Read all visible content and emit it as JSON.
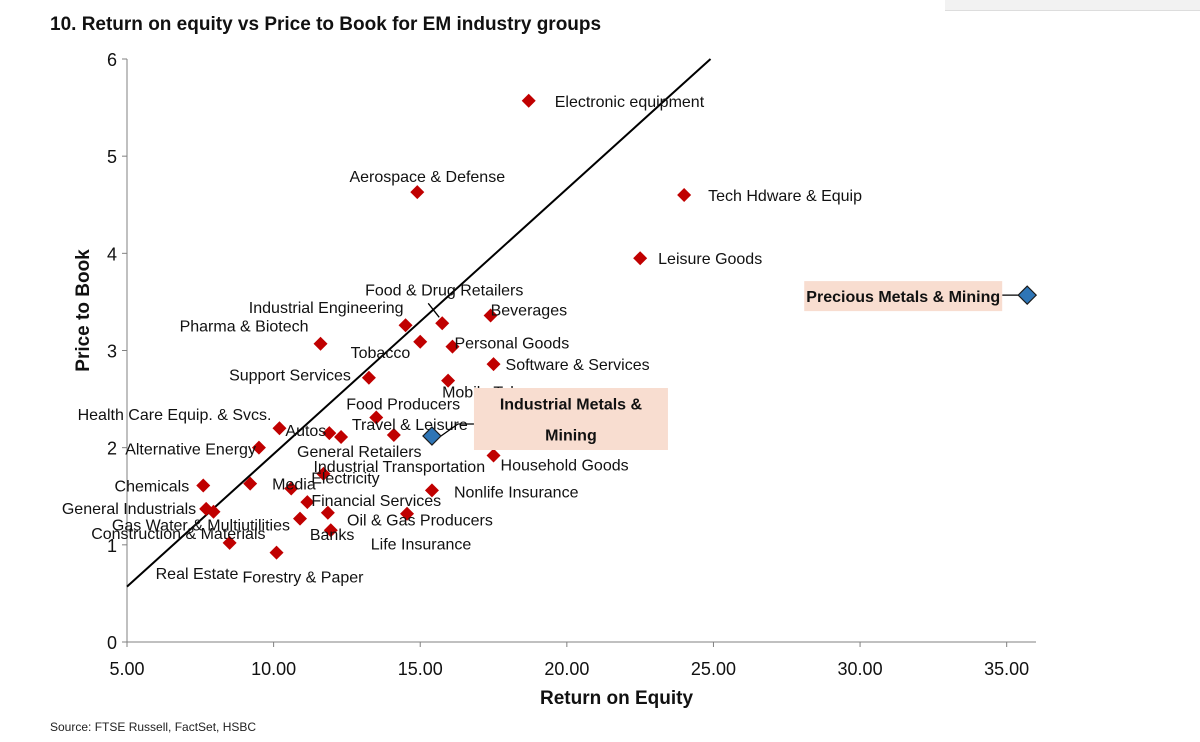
{
  "title": "10. Return on equity vs Price to Book for EM industry groups",
  "source": "Source: FTSE Russell, FactSet, HSBC",
  "chart_data": {
    "type": "scatter",
    "xlabel": "Return on Equity",
    "ylabel": "Price to Book",
    "xlim": [
      5,
      36
    ],
    "ylim": [
      0,
      6
    ],
    "xticks": [
      "5.00",
      "10.00",
      "15.00",
      "20.00",
      "25.00",
      "30.00",
      "35.00"
    ],
    "xtick_values": [
      5,
      10,
      15,
      20,
      25,
      30,
      35
    ],
    "yticks": [
      "0",
      "1",
      "2",
      "3",
      "4",
      "5",
      "6"
    ],
    "ytick_values": [
      0,
      1,
      2,
      3,
      4,
      5,
      6
    ],
    "grid": false,
    "trendline": {
      "x": [
        5,
        24.9
      ],
      "y": [
        0.57,
        6.0
      ]
    },
    "colors": {
      "point": "#c00000",
      "highlight": "#2e75b6",
      "highlight_box": "#f8ddd0",
      "line": "#000000"
    },
    "points": [
      {
        "label": "Electronic equipment",
        "x": 18.7,
        "y": 5.57
      },
      {
        "label": "Aerospace & Defense",
        "x": 14.9,
        "y": 4.63
      },
      {
        "label": "Tech Hdware & Equip",
        "x": 24.0,
        "y": 4.6
      },
      {
        "label": "Leisure Goods",
        "x": 22.5,
        "y": 3.95
      },
      {
        "label": "Food & Drug Retailers",
        "x": 15.75,
        "y": 3.28
      },
      {
        "label": "Industrial Engineering",
        "x": 14.5,
        "y": 3.26
      },
      {
        "label": "Beverages",
        "x": 17.4,
        "y": 3.36
      },
      {
        "label": "Pharma & Biotech",
        "x": 11.6,
        "y": 3.07
      },
      {
        "label": "Tobacco",
        "x": 15.0,
        "y": 3.09
      },
      {
        "label": "Personal Goods",
        "x": 16.1,
        "y": 3.04
      },
      {
        "label": "Software &  Services",
        "x": 17.5,
        "y": 2.86
      },
      {
        "label": "Support Services",
        "x": 13.25,
        "y": 2.72
      },
      {
        "label": "Mobile Telecoms",
        "x": 15.95,
        "y": 2.69
      },
      {
        "label": "Food Producers",
        "x": 13.5,
        "y": 2.31
      },
      {
        "label": "Health Care Equip. & Svcs.",
        "x": 10.2,
        "y": 2.2
      },
      {
        "label": "Autos",
        "x": 11.9,
        "y": 2.15
      },
      {
        "label": "Travel & Leisure",
        "x": 14.1,
        "y": 2.13
      },
      {
        "label": "General Retailers",
        "x": 12.3,
        "y": 2.11
      },
      {
        "label": "Alternative Energy",
        "x": 9.5,
        "y": 2.0
      },
      {
        "label": "Household Goods",
        "x": 17.5,
        "y": 1.92
      },
      {
        "label": "Industrial Transportation",
        "x": 11.7,
        "y": 1.73
      },
      {
        "label": "Chemicals",
        "x": 7.6,
        "y": 1.61
      },
      {
        "label": "Media",
        "x": 9.2,
        "y": 1.63
      },
      {
        "label": "Electricity",
        "x": 10.6,
        "y": 1.58
      },
      {
        "label": "Nonlife Insurance",
        "x": 15.4,
        "y": 1.56
      },
      {
        "label": "Financial Services",
        "x": 11.15,
        "y": 1.44
      },
      {
        "label": "General Industrials",
        "x": 7.7,
        "y": 1.37
      },
      {
        "label": "Gas Water & Multiutilities",
        "x": 10.9,
        "y": 1.27
      },
      {
        "label": "Oil & Gas Producers",
        "x": 14.55,
        "y": 1.32
      },
      {
        "label": "Construction & Materials",
        "x": 7.95,
        "y": 1.34
      },
      {
        "label": "Banks",
        "x": 11.85,
        "y": 1.33
      },
      {
        "label": "Life Insurance",
        "x": 11.95,
        "y": 1.15
      },
      {
        "label": "Real Estate",
        "x": 8.5,
        "y": 1.02
      },
      {
        "label": "Forestry & Paper",
        "x": 10.1,
        "y": 0.92
      }
    ],
    "highlighted": [
      {
        "label": "Precious Metals & Mining",
        "x": 35.7,
        "y": 3.57
      },
      {
        "label": "Industrial Metals &\nMining",
        "x": 15.4,
        "y": 2.12
      }
    ]
  }
}
